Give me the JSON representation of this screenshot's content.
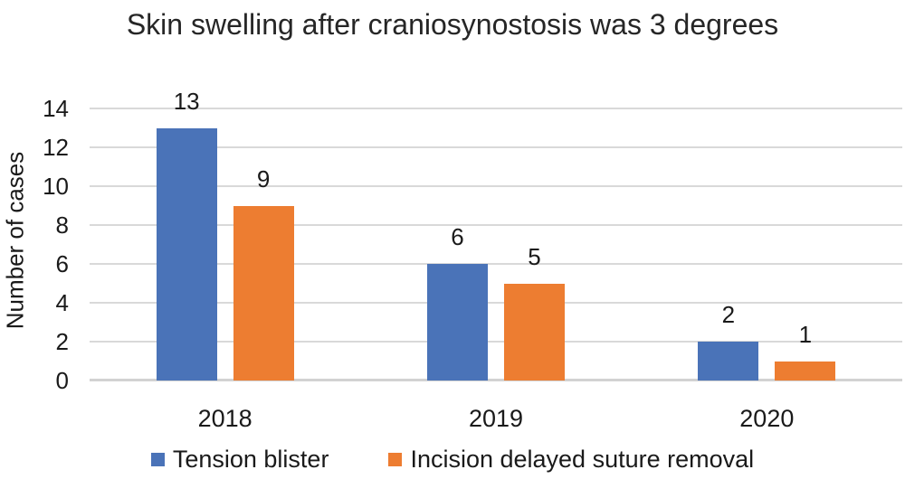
{
  "chart_data": {
    "type": "bar",
    "title": "Skin swelling after craniosynostosis was 3 degrees",
    "xlabel": "",
    "ylabel": "Number of cases",
    "categories": [
      "2018",
      "2019",
      "2020"
    ],
    "series": [
      {
        "name": "Tension blister",
        "color": "#4a73b8",
        "values": [
          13,
          6,
          2
        ]
      },
      {
        "name": "Incision delayed suture removal",
        "color": "#ed7d31",
        "values": [
          9,
          5,
          1
        ]
      }
    ],
    "ylim": [
      0,
      14
    ],
    "yticks": [
      0,
      2,
      4,
      6,
      8,
      10,
      12,
      14
    ],
    "grid": "horizontal",
    "gridline_color": "#d9d9d9",
    "legend_position": "bottom",
    "text_color": "#1a1a1a",
    "data_labels_shown": true
  }
}
